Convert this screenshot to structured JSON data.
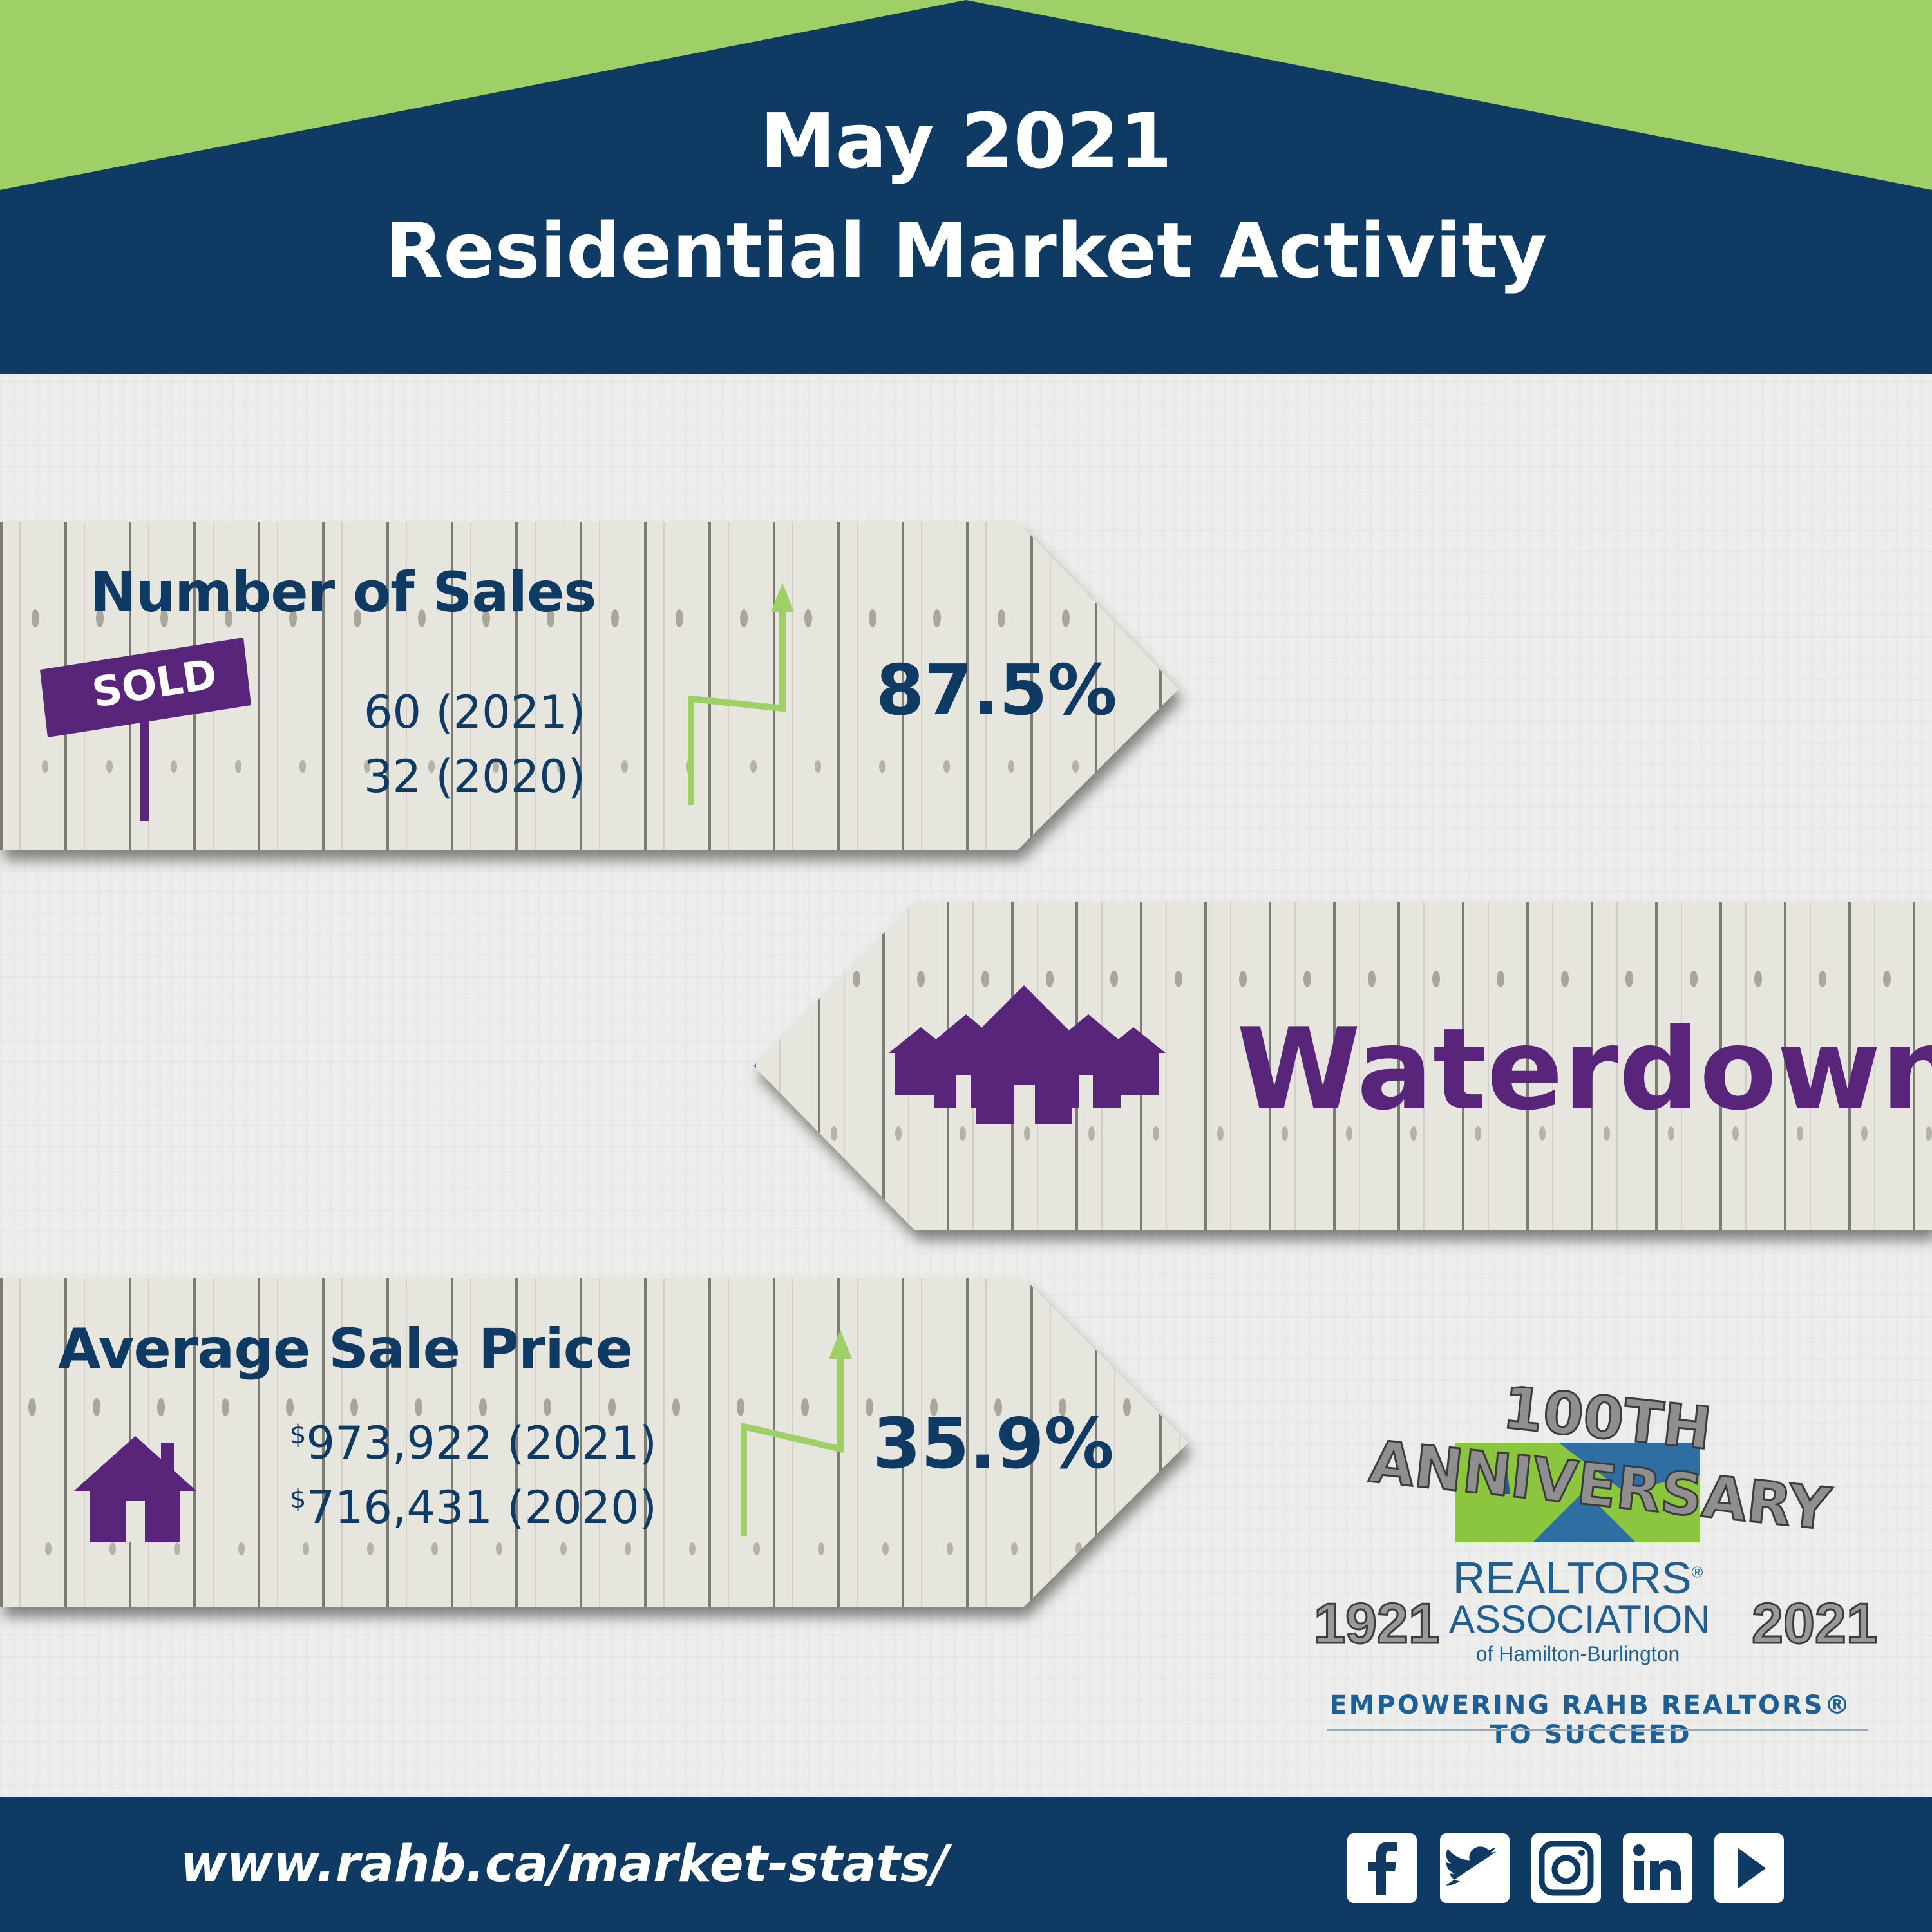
{
  "header": {
    "line1": "May 2021",
    "line2": "Residential Market Activity",
    "navy": "#0e3a63",
    "green": "#9fcf67"
  },
  "sales": {
    "heading": "Number of Sales",
    "sold_sign": "SOLD",
    "value_2021": "60 (2021)",
    "value_2020": "32 (2020)",
    "change": "87.5%",
    "trend_icon": "trend-up-arrow-icon"
  },
  "location": {
    "name": "Waterdown",
    "icon": "houses-icon"
  },
  "price": {
    "heading": "Average Sale Price",
    "currency": "$",
    "value_2021": "973,922 (2021)",
    "value_2020": "716,431 (2020)",
    "change": "35.9%",
    "icon": "house-icon",
    "trend_icon": "trend-up-arrow-icon"
  },
  "logo": {
    "anniversary": "100TH ANNIVERSARY",
    "year_start": "1921",
    "year_end": "2021",
    "name_line1": "REALTORS",
    "registered": "®",
    "name_line2": "ASSOCIATION",
    "name_line3": "of Hamilton-Burlington",
    "tagline": "EMPOWERING RAHB REALTORS® TO SUCCEED"
  },
  "footer": {
    "url": "www.rahb.ca/market-stats/",
    "social": [
      "facebook-icon",
      "twitter-icon",
      "instagram-icon",
      "linkedin-icon",
      "youtube-icon"
    ]
  },
  "colors": {
    "accent_green": "#9fcf67",
    "purple": "#58257a",
    "navy": "#0e3a63"
  }
}
